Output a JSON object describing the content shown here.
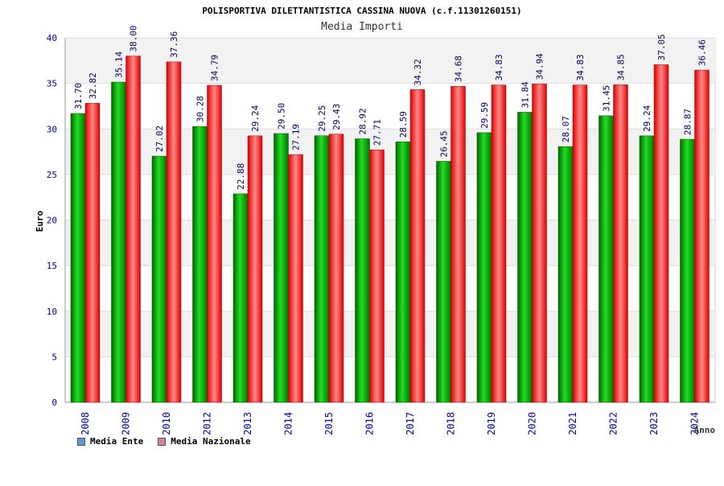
{
  "chart_data": {
    "type": "bar",
    "title": "POLISPORTIVA DILETTANTISTICA CASSINA NUOVA (c.f.11301260151)",
    "subtitle": "Media Importi",
    "xlabel": "Anno",
    "ylabel": "Euro",
    "ylim": [
      0,
      40
    ],
    "yticks": [
      "0",
      "5",
      "10",
      "15",
      "20",
      "25",
      "30",
      "35",
      "40"
    ],
    "categories": [
      "2008",
      "2009",
      "2010",
      "2012",
      "2013",
      "2014",
      "2015",
      "2016",
      "2017",
      "2018",
      "2019",
      "2020",
      "2021",
      "2022",
      "2023",
      "2024"
    ],
    "series": [
      {
        "name": "Media Ente",
        "color": "#00aa00",
        "legend_color": "#5b9bd5",
        "values": [
          31.7,
          35.14,
          27.02,
          30.28,
          22.88,
          29.5,
          29.25,
          28.92,
          28.59,
          26.45,
          29.59,
          31.84,
          28.07,
          31.45,
          29.24,
          28.87
        ],
        "labels": [
          "31.70",
          "35.14",
          "27.02",
          "30.28",
          "22.88",
          "29.50",
          "29.25",
          "28.92",
          "28.59",
          "26.45",
          "29.59",
          "31.84",
          "28.07",
          "31.45",
          "29.24",
          "28.87"
        ]
      },
      {
        "name": "Media Nazionale",
        "color": "#ee0000",
        "legend_color": "#d580a0",
        "values": [
          32.82,
          38.0,
          37.36,
          34.79,
          29.24,
          27.19,
          29.43,
          27.71,
          34.32,
          34.68,
          34.83,
          34.94,
          34.83,
          34.85,
          37.05,
          36.46
        ],
        "labels": [
          "32.82",
          "38.00",
          "37.36",
          "34.79",
          "29.24",
          "27.19",
          "29.43",
          "27.71",
          "34.32",
          "34.68",
          "34.83",
          "34.94",
          "34.83",
          "34.85",
          "37.05",
          "36.46"
        ]
      }
    ],
    "grid": true,
    "legend_position": "bottom-left"
  }
}
